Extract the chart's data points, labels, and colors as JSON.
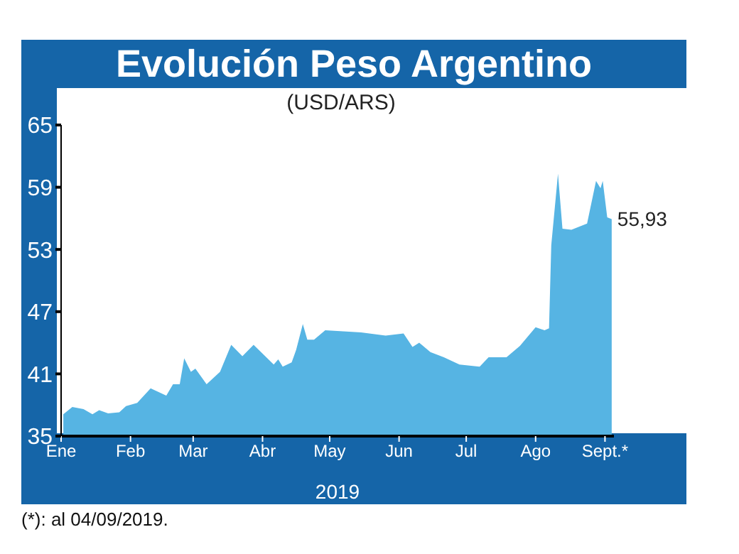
{
  "chart_data": {
    "type": "area",
    "title": "Evolución Peso Argentino",
    "subtitle": "(USD/ARS)",
    "xlabel": "2019",
    "color": "#56b4e3",
    "x": [
      "2019-01-02",
      "2019-01-06",
      "2019-01-11",
      "2019-01-15",
      "2019-01-18",
      "2019-01-22",
      "2019-01-27",
      "2019-01-30",
      "2019-02-04",
      "2019-02-10",
      "2019-02-17",
      "2019-02-20",
      "2019-02-23",
      "2019-02-25",
      "2019-02-28",
      "2019-03-02",
      "2019-03-07",
      "2019-03-13",
      "2019-03-18",
      "2019-03-23",
      "2019-03-28",
      "2019-04-06",
      "2019-04-08",
      "2019-04-10",
      "2019-04-14",
      "2019-04-16",
      "2019-04-19",
      "2019-04-21",
      "2019-04-24",
      "2019-04-29",
      "2019-05-07",
      "2019-05-15",
      "2019-05-26",
      "2019-06-03",
      "2019-06-07",
      "2019-06-10",
      "2019-06-15",
      "2019-06-21",
      "2019-06-28",
      "2019-07-07",
      "2019-07-11",
      "2019-07-19",
      "2019-07-25",
      "2019-08-01",
      "2019-08-05",
      "2019-08-07",
      "2019-08-08",
      "2019-08-11",
      "2019-08-13",
      "2019-08-17",
      "2019-08-24",
      "2019-08-28",
      "2019-08-30",
      "2019-08-31",
      "2019-09-02",
      "2019-09-04"
    ],
    "values": [
      37.1,
      37.8,
      37.6,
      37.1,
      37.5,
      37.2,
      37.3,
      37.9,
      38.2,
      39.6,
      38.9,
      40.0,
      40.0,
      42.5,
      41.2,
      41.5,
      40.0,
      41.2,
      43.8,
      42.7,
      43.8,
      41.9,
      42.4,
      41.7,
      42.1,
      43.3,
      45.8,
      44.3,
      44.3,
      45.2,
      45.1,
      45.0,
      44.7,
      44.9,
      43.6,
      44.0,
      43.1,
      42.6,
      41.9,
      41.7,
      42.6,
      42.6,
      43.7,
      45.5,
      45.2,
      45.4,
      53.4,
      60.3,
      55.0,
      54.9,
      55.5,
      59.6,
      58.9,
      59.6,
      56.1,
      55.93
    ],
    "ylim": [
      35,
      65
    ],
    "yticks": [
      35,
      41,
      47,
      53,
      59,
      65
    ],
    "xlim": [
      "2019-01-01",
      "2019-09-05"
    ],
    "xticks": [
      {
        "value": "2019-01-01",
        "label": "Ene"
      },
      {
        "value": "2019-02-01",
        "label": "Feb"
      },
      {
        "value": "2019-03-01",
        "label": "Mar"
      },
      {
        "value": "2019-04-01",
        "label": "Abr"
      },
      {
        "value": "2019-05-01",
        "label": "May"
      },
      {
        "value": "2019-06-01",
        "label": "Jun"
      },
      {
        "value": "2019-07-01",
        "label": "Jul"
      },
      {
        "value": "2019-08-01",
        "label": "Ago"
      },
      {
        "value": "2019-09-01",
        "label": "Sept.*"
      }
    ],
    "value_labels": [
      null,
      null,
      null,
      null,
      null,
      null,
      null,
      null,
      null,
      null,
      null,
      null,
      null,
      null,
      null,
      null,
      null,
      null,
      null,
      null,
      null,
      null,
      null,
      null,
      null,
      null,
      null,
      null,
      null,
      null,
      null,
      null,
      null,
      null,
      null,
      null,
      null,
      null,
      null,
      null,
      null,
      null,
      null,
      null,
      null,
      null,
      null,
      null,
      null,
      null,
      null,
      null,
      null,
      null,
      null,
      "55,93"
    ],
    "annotations": [
      "(*): al 04/09/2019."
    ]
  }
}
